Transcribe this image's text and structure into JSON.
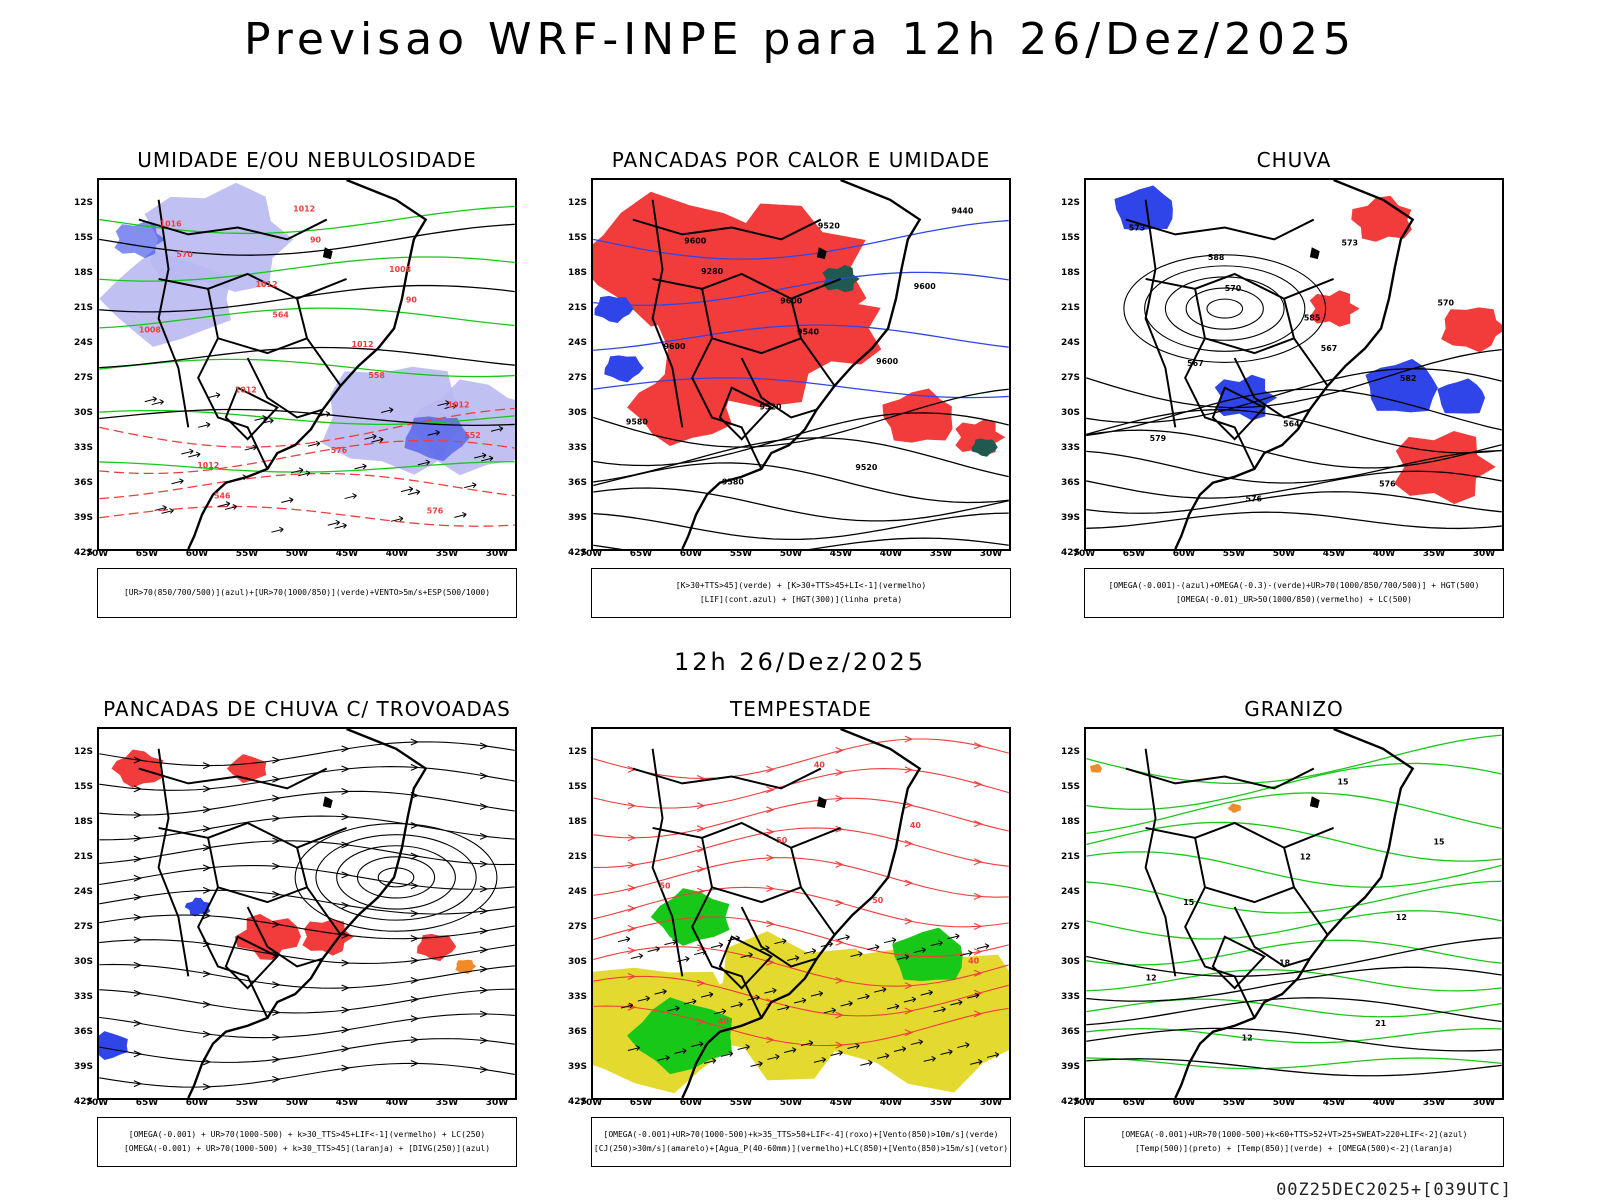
{
  "title": "Previsao WRF-INPE  para 12h 26/Dez/2025",
  "row_label": "12h 26/Dez/2025",
  "footer": "00Z25DEC2025+[039UTC]",
  "lat_labels": [
    "12S",
    "15S",
    "18S",
    "21S",
    "24S",
    "27S",
    "30S",
    "33S",
    "36S",
    "39S",
    "42S"
  ],
  "lon_labels": [
    "70W",
    "65W",
    "60W",
    "55W",
    "50W",
    "45W",
    "40W",
    "35W",
    "30W"
  ],
  "colors": {
    "red": "#f23c3c",
    "blue": "#2f45e8",
    "green": "#18c818",
    "lavender": "#b9b9f2",
    "yellow": "#e4d92e",
    "darkgreen": "#1e5a4e",
    "orange": "#f08a2a",
    "black": "#000000"
  },
  "panels": [
    {
      "title": "UMIDADE E/OU NEBULOSIDADE",
      "legend": [
        "[UR>70(850/700/500)](azul)+[UR>70(1000/850)](verde)+VENTO>5m/s+ESP(500/1000)"
      ],
      "labels": [
        "1016",
        "1012",
        "1012",
        "1012",
        "1012",
        "1012",
        "1008",
        "1008",
        "1012",
        "576",
        "576",
        "570",
        "564",
        "558",
        "552",
        "546",
        "90",
        "90"
      ]
    },
    {
      "title": "PANCADAS POR CALOR E UMIDADE",
      "legend": [
        "[K>30+TTS>45](verde) + [K>30+TTS>45+LI<-1](vermelho)",
        "[LIF](cont.azul) + [HGT(300)](linha preta)"
      ],
      "labels": [
        "9600",
        "9600",
        "9600",
        "9580",
        "9580",
        "9520",
        "9600",
        "9600",
        "9520",
        "9520",
        "9440",
        "9280",
        "9540"
      ]
    },
    {
      "title": "CHUVA",
      "legend": [
        "[OMEGA(-0.001)-(azul)+OMEGA(-0.3)-(verde)+UR>70(1000/850/700/500)] + HGT(500)",
        "[OMEGA(-0.01)_UR>50(1000/850)(vermelho) + LC(500)"
      ],
      "labels": [
        "588",
        "585",
        "582",
        "579",
        "576",
        "573",
        "570",
        "567",
        "564",
        "576",
        "573",
        "570",
        "567"
      ]
    },
    {
      "title": "PANCADAS DE CHUVA C/ TROVOADAS",
      "legend": [
        "[OMEGA(-0.001) + UR>70(1000-500) + k>30_TTS>45+LIF<-1](vermelho) + LC(250)",
        "[OMEGA(-0.001) + UR>70(1000-500) + k>30_TTS>45](laranja) + [DIVG(250)](azul)"
      ],
      "labels": []
    },
    {
      "title": "TEMPESTADE",
      "legend": [
        "[OMEGA(-0.001)+UR>70(1000-500)+k>35_TTS>50+LIF<-4](roxo)+[Vento(850)>10m/s](verde)",
        "[CJ(250)>30m/s](amarelo)+[Agua_P(40-60mm)](vermelho)+LC(850)+[Vento(850)>15m/s](vetor)"
      ],
      "labels": [
        "50",
        "50",
        "40",
        "40",
        "40",
        "40",
        "50"
      ]
    },
    {
      "title": "GRANIZO",
      "legend": [
        "[OMEGA(-0.001)+UR>70(1000-500)+k<60+TTS>52+VT>25+SWEAT>220+LIF<-2](azul)",
        "[Temp(500)](preto) + [Temp(850)](verde) + [OMEGA(500)<-2](laranja)"
      ],
      "labels": [
        "12",
        "12",
        "12",
        "12",
        "15",
        "15",
        "15",
        "18",
        "21"
      ]
    }
  ]
}
